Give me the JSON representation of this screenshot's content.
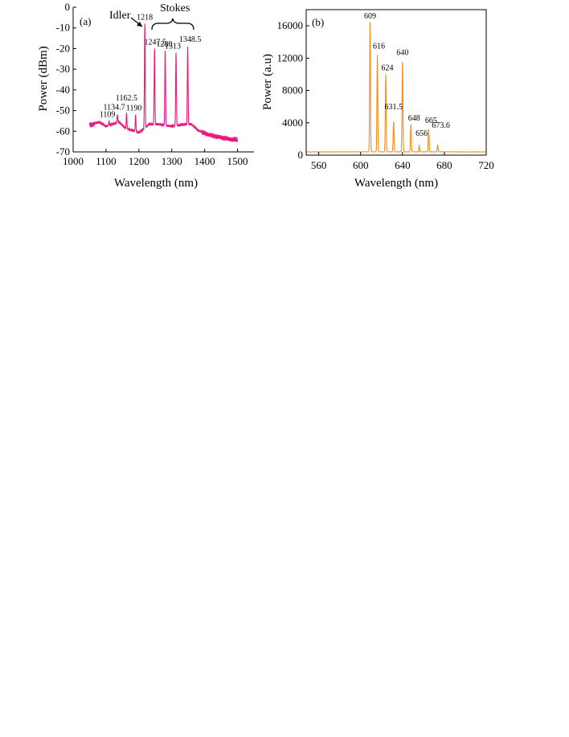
{
  "chart_data": [
    {
      "type": "line",
      "panel_label": "(a)",
      "xlabel": "Wavelength (nm)",
      "ylabel": "Power (dBm)",
      "xlim": [
        1000,
        1550
      ],
      "ylim": [
        -70,
        0
      ],
      "xticks": [
        1000,
        1100,
        1200,
        1300,
        1400,
        1500
      ],
      "yticks": [
        0,
        -10,
        -20,
        -30,
        -40,
        -50,
        -60,
        -70
      ],
      "color": "#e8177d",
      "baseline": [
        [
          1050,
          -57
        ],
        [
          1080,
          -56
        ],
        [
          1100,
          -58
        ],
        [
          1120,
          -57
        ],
        [
          1140,
          -56
        ],
        [
          1160,
          -59
        ],
        [
          1180,
          -60
        ],
        [
          1200,
          -61
        ],
        [
          1210,
          -60
        ],
        [
          1230,
          -57
        ],
        [
          1260,
          -57
        ],
        [
          1300,
          -58
        ],
        [
          1340,
          -57
        ],
        [
          1360,
          -57
        ],
        [
          1380,
          -60
        ],
        [
          1400,
          -61
        ],
        [
          1420,
          -62
        ],
        [
          1450,
          -63
        ],
        [
          1480,
          -64
        ],
        [
          1500,
          -64
        ]
      ],
      "peaks": [
        {
          "x": 1109,
          "y": -55,
          "label": "1109"
        },
        {
          "x": 1134.7,
          "y": -52,
          "label": "1134.7"
        },
        {
          "x": 1162.5,
          "y": -51,
          "label": "1162.5"
        },
        {
          "x": 1190,
          "y": -52,
          "label": "1190"
        },
        {
          "x": 1218,
          "y": -8,
          "label": "1218"
        },
        {
          "x": 1247.5,
          "y": -20,
          "label": "1247.5"
        },
        {
          "x": 1280,
          "y": -21,
          "label": "1280"
        },
        {
          "x": 1313,
          "y": -22,
          "label": "1313"
        },
        {
          "x": 1348.5,
          "y": -19,
          "label": "1348.5"
        }
      ],
      "annotations": {
        "idler": "Idler",
        "stokes": "Stokes"
      }
    },
    {
      "type": "line",
      "panel_label": "(b)",
      "xlabel": "Wavelength (nm)",
      "ylabel": "Power (a.u)",
      "xlim": [
        548,
        720
      ],
      "ylim": [
        0,
        18000
      ],
      "xticks": [
        560,
        600,
        640,
        680,
        720
      ],
      "yticks": [
        0,
        4000,
        8000,
        12000,
        16000
      ],
      "color": "#f28c1a",
      "baseline_level": 400,
      "peaks": [
        {
          "x": 609,
          "y": 16400,
          "label": "609"
        },
        {
          "x": 616,
          "y": 12400,
          "label": "616"
        },
        {
          "x": 624,
          "y": 10000,
          "label": "624"
        },
        {
          "x": 631.5,
          "y": 4200,
          "label": "631.5"
        },
        {
          "x": 640,
          "y": 11500,
          "label": "640"
        },
        {
          "x": 648,
          "y": 3800,
          "label": "648"
        },
        {
          "x": 656,
          "y": 1200,
          "label": "656"
        },
        {
          "x": 665,
          "y": 3200,
          "label": "665"
        },
        {
          "x": 673.6,
          "y": 1200,
          "label": "673.6"
        }
      ]
    }
  ]
}
